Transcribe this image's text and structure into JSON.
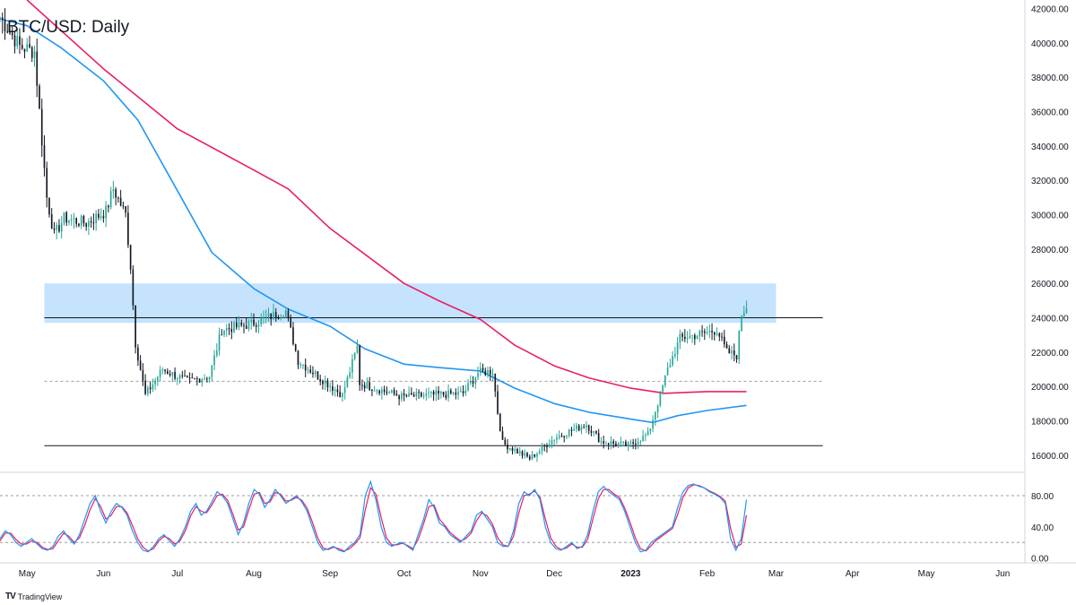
{
  "title": "BTC/USD: Daily",
  "brand": {
    "logo": "TV",
    "name": "TradingView",
    "logo_icon": "tradingview-logo-icon"
  },
  "colors": {
    "up": "#26a69a",
    "down": "#131722",
    "ma_short": "#2196f3",
    "ma_long": "#e91e63",
    "zone": "#bbdefb",
    "level": "#131722",
    "dashed": "#9e9e9e",
    "stoch_k": "#2196f3",
    "stoch_d": "#e91e63"
  },
  "chart_data": [
    {
      "type": "line",
      "title": "BTC/USD: Daily",
      "ylim": [
        15000,
        42500
      ],
      "y_ticks": [
        "42000.00",
        "40000.00",
        "38000.00",
        "36000.00",
        "34000.00",
        "32000.00",
        "30000.00",
        "28000.00",
        "26000.00",
        "24000.00",
        "22000.00",
        "20000.00",
        "18000.00",
        "16000.00"
      ],
      "y_tick_values": [
        42000,
        40000,
        38000,
        36000,
        34000,
        32000,
        30000,
        28000,
        26000,
        24000,
        22000,
        20000,
        18000,
        16000
      ],
      "x_ticks": [
        "May",
        "Jun",
        "Jul",
        "Aug",
        "Sep",
        "Oct",
        "Nov",
        "Dec",
        "2023",
        "Feb",
        "Mar",
        "Apr",
        "May",
        "Jun"
      ],
      "x_tick_dates": [
        "2022-05-01",
        "2022-06-01",
        "2022-07-01",
        "2022-08-01",
        "2022-09-01",
        "2022-10-01",
        "2022-11-01",
        "2022-12-01",
        "2023-01-01",
        "2023-02-01",
        "2023-03-01",
        "2023-04-01",
        "2023-05-01",
        "2023-06-01"
      ],
      "x_range": [
        "2022-04-20",
        "2023-06-10"
      ],
      "price_path": [
        {
          "date": "2022-04-20",
          "close": 41500
        },
        {
          "date": "2022-04-28",
          "close": 39800
        },
        {
          "date": "2022-05-04",
          "close": 39500
        },
        {
          "date": "2022-05-06",
          "close": 36000
        },
        {
          "date": "2022-05-09",
          "close": 31000
        },
        {
          "date": "2022-05-12",
          "close": 28800
        },
        {
          "date": "2022-05-16",
          "close": 29800
        },
        {
          "date": "2022-05-25",
          "close": 29500
        },
        {
          "date": "2022-06-02",
          "close": 30200
        },
        {
          "date": "2022-06-05",
          "close": 31500
        },
        {
          "date": "2022-06-10",
          "close": 30000
        },
        {
          "date": "2022-06-12",
          "close": 27000
        },
        {
          "date": "2022-06-14",
          "close": 22500
        },
        {
          "date": "2022-06-18",
          "close": 19500
        },
        {
          "date": "2022-06-25",
          "close": 21000
        },
        {
          "date": "2022-07-05",
          "close": 20300
        },
        {
          "date": "2022-07-14",
          "close": 20600
        },
        {
          "date": "2022-07-19",
          "close": 23300
        },
        {
          "date": "2022-07-30",
          "close": 23600
        },
        {
          "date": "2022-08-14",
          "close": 24400
        },
        {
          "date": "2022-08-19",
          "close": 21500
        },
        {
          "date": "2022-09-06",
          "close": 19500
        },
        {
          "date": "2022-09-12",
          "close": 22300
        },
        {
          "date": "2022-09-13",
          "close": 20200
        },
        {
          "date": "2022-09-30",
          "close": 19400
        },
        {
          "date": "2022-10-25",
          "close": 19600
        },
        {
          "date": "2022-10-31",
          "close": 20800
        },
        {
          "date": "2022-11-06",
          "close": 20900
        },
        {
          "date": "2022-11-08",
          "close": 18500
        },
        {
          "date": "2022-11-10",
          "close": 16700
        },
        {
          "date": "2022-11-21",
          "close": 15800
        },
        {
          "date": "2022-12-01",
          "close": 17000
        },
        {
          "date": "2022-12-14",
          "close": 17800
        },
        {
          "date": "2022-12-20",
          "close": 16800
        },
        {
          "date": "2022-12-31",
          "close": 16550
        },
        {
          "date": "2023-01-08",
          "close": 17200
        },
        {
          "date": "2023-01-13",
          "close": 19500
        },
        {
          "date": "2023-01-16",
          "close": 21000
        },
        {
          "date": "2023-01-21",
          "close": 22800
        },
        {
          "date": "2023-01-31",
          "close": 23100
        },
        {
          "date": "2023-02-05",
          "close": 23300
        },
        {
          "date": "2023-02-09",
          "close": 22000
        },
        {
          "date": "2023-02-13",
          "close": 21800
        },
        {
          "date": "2023-02-15",
          "close": 24200
        },
        {
          "date": "2023-02-17",
          "close": 24700
        }
      ],
      "ma_long": [
        {
          "date": "2022-05-01",
          "value": 42500
        },
        {
          "date": "2022-06-01",
          "value": 38500
        },
        {
          "date": "2022-07-01",
          "value": 35000
        },
        {
          "date": "2022-08-01",
          "value": 32600
        },
        {
          "date": "2022-08-15",
          "value": 31500
        },
        {
          "date": "2022-09-01",
          "value": 29200
        },
        {
          "date": "2022-10-01",
          "value": 26000
        },
        {
          "date": "2022-10-15",
          "value": 25000
        },
        {
          "date": "2022-11-01",
          "value": 23900
        },
        {
          "date": "2022-11-15",
          "value": 22400
        },
        {
          "date": "2022-12-01",
          "value": 21200
        },
        {
          "date": "2022-12-15",
          "value": 20500
        },
        {
          "date": "2023-01-01",
          "value": 19900
        },
        {
          "date": "2023-01-15",
          "value": 19600
        },
        {
          "date": "2023-02-01",
          "value": 19700
        },
        {
          "date": "2023-02-17",
          "value": 19700
        }
      ],
      "ma_short": [
        {
          "date": "2022-04-20",
          "value": 41400
        },
        {
          "date": "2022-05-01",
          "value": 41000
        },
        {
          "date": "2022-05-15",
          "value": 39700
        },
        {
          "date": "2022-06-01",
          "value": 37800
        },
        {
          "date": "2022-06-15",
          "value": 35500
        },
        {
          "date": "2022-07-01",
          "value": 31400
        },
        {
          "date": "2022-07-15",
          "value": 27800
        },
        {
          "date": "2022-08-01",
          "value": 25700
        },
        {
          "date": "2022-08-15",
          "value": 24500
        },
        {
          "date": "2022-09-01",
          "value": 23500
        },
        {
          "date": "2022-09-15",
          "value": 22200
        },
        {
          "date": "2022-10-01",
          "value": 21300
        },
        {
          "date": "2022-10-15",
          "value": 21100
        },
        {
          "date": "2022-11-01",
          "value": 20900
        },
        {
          "date": "2022-11-15",
          "value": 19900
        },
        {
          "date": "2022-12-01",
          "value": 19000
        },
        {
          "date": "2022-12-15",
          "value": 18500
        },
        {
          "date": "2023-01-01",
          "value": 18100
        },
        {
          "date": "2023-01-10",
          "value": 17900
        },
        {
          "date": "2023-01-20",
          "value": 18300
        },
        {
          "date": "2023-02-01",
          "value": 18600
        },
        {
          "date": "2023-02-17",
          "value": 18900
        }
      ],
      "resistance_zone": {
        "from": 23700,
        "to": 26000,
        "start": "2022-05-08",
        "end": "2023-03-01"
      },
      "levels": [
        {
          "value": 24000,
          "style": "solid",
          "start": "2022-05-08",
          "end": "2023-03-20"
        },
        {
          "value": 20300,
          "style": "dashed",
          "start": "2022-05-08",
          "end": "2023-03-20"
        },
        {
          "value": 16550,
          "style": "solid",
          "start": "2022-05-08",
          "end": "2023-03-20"
        }
      ]
    },
    {
      "type": "line",
      "title": "",
      "ylim": [
        -5,
        103
      ],
      "y_ticks": [
        "80.00",
        "40.00",
        "0.00"
      ],
      "y_tick_values": [
        80,
        40,
        0
      ],
      "levels": [
        80,
        20
      ],
      "series": [
        {
          "values": [
            25,
            35,
            30,
            20,
            15,
            20,
            25,
            18,
            12,
            10,
            15,
            28,
            35,
            25,
            18,
            30,
            50,
            70,
            80,
            60,
            45,
            60,
            70,
            65,
            55,
            35,
            20,
            10,
            8,
            15,
            25,
            30,
            22,
            15,
            25,
            40,
            60,
            70,
            55,
            60,
            72,
            85,
            80,
            70,
            50,
            30,
            45,
            70,
            88,
            82,
            65,
            75,
            88,
            80,
            70,
            75,
            80,
            72,
            60,
            40,
            20,
            10,
            12,
            15,
            10,
            8,
            15,
            20,
            30,
            80,
            98,
            75,
            40,
            20,
            15,
            18,
            20,
            15,
            10,
            30,
            50,
            75,
            65,
            45,
            40,
            30,
            25,
            20,
            28,
            35,
            55,
            60,
            50,
            40,
            20,
            15,
            15,
            35,
            70,
            85,
            80,
            88,
            75,
            40,
            20,
            12,
            10,
            15,
            20,
            12,
            15,
            30,
            60,
            85,
            92,
            85,
            80,
            75,
            60,
            40,
            20,
            8,
            10,
            20,
            25,
            30,
            35,
            40,
            65,
            85,
            93,
            95,
            92,
            90,
            85,
            82,
            78,
            70,
            25,
            10,
            25,
            75
          ]
        },
        {
          "values": [
            22,
            32,
            32,
            24,
            18,
            18,
            22,
            20,
            14,
            11,
            12,
            22,
            32,
            28,
            20,
            26,
            42,
            62,
            76,
            66,
            50,
            55,
            66,
            66,
            58,
            42,
            25,
            14,
            9,
            12,
            22,
            28,
            25,
            18,
            22,
            35,
            54,
            66,
            60,
            58,
            68,
            80,
            82,
            74,
            56,
            36,
            40,
            62,
            82,
            84,
            70,
            72,
            84,
            82,
            73,
            74,
            78,
            74,
            64,
            46,
            26,
            13,
            11,
            14,
            12,
            9,
            12,
            18,
            26,
            62,
            90,
            82,
            52,
            26,
            17,
            17,
            19,
            16,
            12,
            24,
            44,
            66,
            68,
            50,
            42,
            33,
            27,
            22,
            25,
            32,
            48,
            58,
            54,
            44,
            26,
            17,
            15,
            28,
            58,
            80,
            82,
            86,
            78,
            50,
            26,
            15,
            11,
            13,
            18,
            14,
            14,
            24,
            50,
            76,
            88,
            88,
            82,
            78,
            64,
            46,
            26,
            12,
            9,
            16,
            23,
            28,
            33,
            38,
            56,
            78,
            90,
            94,
            93,
            90,
            86,
            83,
            79,
            73,
            38,
            14,
            18,
            55
          ]
        }
      ]
    }
  ]
}
